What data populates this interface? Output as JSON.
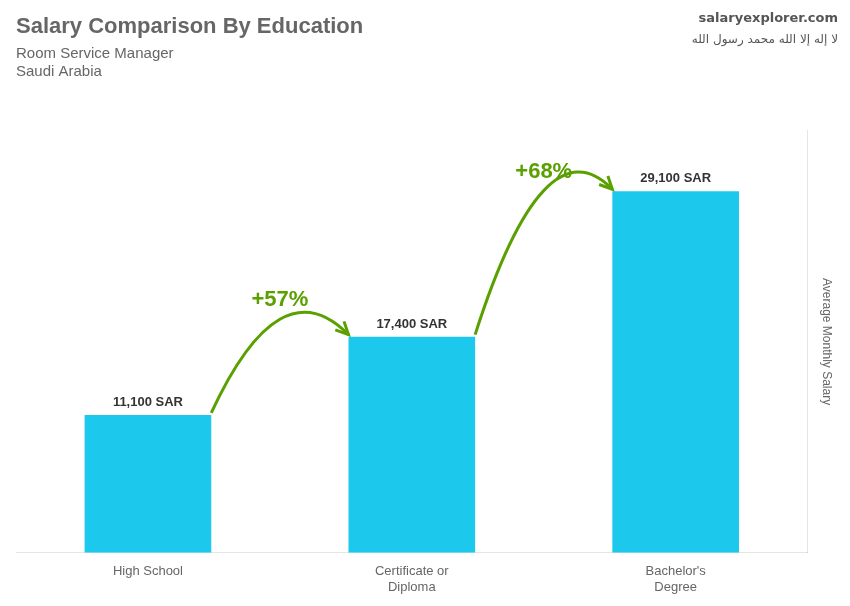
{
  "chart_data": {
    "type": "bar",
    "title": "Salary Comparison By Education",
    "subtitle": [
      "Room Service Manager",
      "Saudi Arabia"
    ],
    "y_label": "Average Monthly Salary",
    "categories": [
      "High School",
      "Certificate or\nDiploma",
      "Bachelor's\nDegree"
    ],
    "values": [
      11100,
      17400,
      29100
    ],
    "value_labels": [
      "11,100 SAR",
      "17,400 SAR",
      "29,100 SAR"
    ],
    "data_labels": true,
    "color": "#1dc8ed",
    "ylim": [
      0,
      34000
    ],
    "grid": false,
    "tick_labels": "x",
    "annotations": [
      {
        "text": "+57%",
        "from": "High School",
        "to": "Certificate or\nDiploma",
        "color": "#5aa000"
      },
      {
        "text": "+68%",
        "from": "Certificate or\nDiploma",
        "to": "Bachelor's\nDegree",
        "color": "#5aa000"
      },
      {
        "text": "salaryexplorer.com"
      },
      {
        "text": "لا إله إلا الله محمد رسول الله"
      }
    ]
  }
}
